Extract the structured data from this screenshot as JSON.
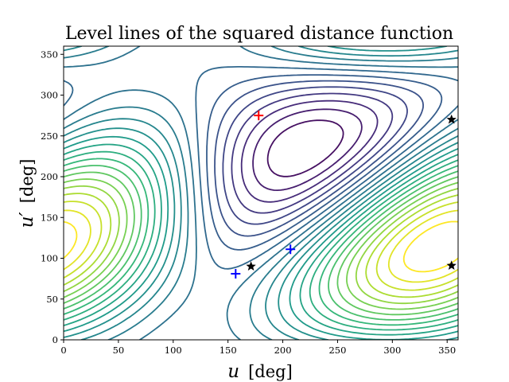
{
  "chart_data": {
    "type": "contour",
    "title": "Level lines of the squared distance function",
    "xlabel": {
      "var": "u",
      "unit": "[deg]"
    },
    "ylabel": {
      "var": "u′",
      "unit": "[deg]"
    },
    "xlim": [
      0,
      360
    ],
    "ylim": [
      0,
      360
    ],
    "xticks": [
      0,
      50,
      100,
      150,
      200,
      250,
      300,
      350
    ],
    "yticks": [
      0,
      50,
      100,
      150,
      200,
      250,
      300,
      350
    ],
    "grid": false,
    "colormap": [
      "#440154",
      "#482878",
      "#3e4a89",
      "#31688e",
      "#26828e",
      "#1f9e89",
      "#35b779",
      "#6ece58",
      "#b5de2b",
      "#fde725"
    ],
    "markers": [
      {
        "name": "maximum",
        "symbol": "+",
        "color": "#ff0000",
        "points": [
          [
            178,
            275
          ]
        ]
      },
      {
        "name": "saddles",
        "symbol": "+",
        "color": "#0000ff",
        "points": [
          [
            157,
            81
          ],
          [
            207,
            111
          ]
        ]
      },
      {
        "name": "stars",
        "symbol": "star",
        "color": "#000000",
        "points": [
          [
            171,
            90
          ],
          [
            354,
            270
          ],
          [
            354,
            91
          ]
        ]
      }
    ]
  }
}
